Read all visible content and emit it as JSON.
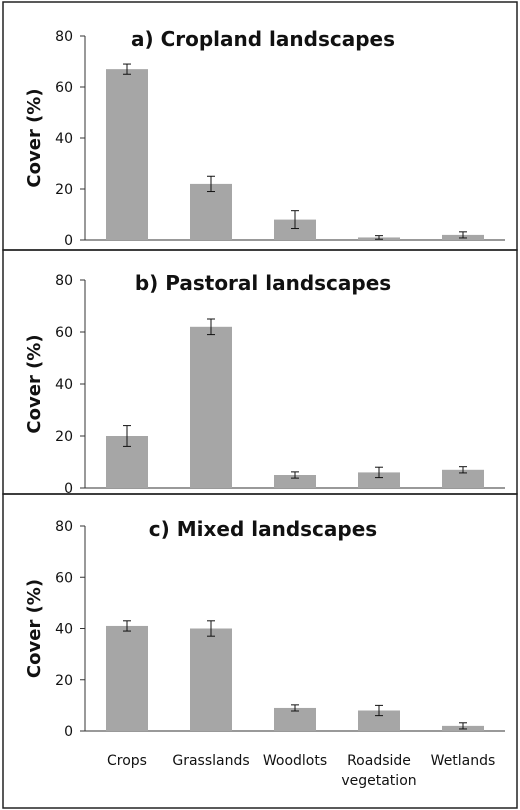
{
  "chart_data": [
    {
      "type": "bar",
      "title": "a) Cropland landscapes",
      "ylabel": "Cover (%)",
      "ylim": [
        0,
        80
      ],
      "yticks": [
        0,
        20,
        40,
        60,
        80
      ],
      "categories": [
        "Crops",
        "Grasslands",
        "Woodlots",
        "Roadside vegetation",
        "Wetlands"
      ],
      "values": [
        67,
        22,
        8,
        1,
        2
      ],
      "errors": [
        2,
        3,
        3.5,
        0.7,
        1.2
      ],
      "bar_color": "#a6a6a6"
    },
    {
      "type": "bar",
      "title": "b) Pastoral landscapes",
      "ylabel": "Cover (%)",
      "ylim": [
        0,
        80
      ],
      "yticks": [
        0,
        20,
        40,
        60,
        80
      ],
      "categories": [
        "Crops",
        "Grasslands",
        "Woodlots",
        "Roadside vegetation",
        "Wetlands"
      ],
      "values": [
        20,
        62,
        5,
        6,
        7
      ],
      "errors": [
        4,
        3,
        1.2,
        2,
        1.2
      ],
      "bar_color": "#a6a6a6"
    },
    {
      "type": "bar",
      "title": "c) Mixed landscapes",
      "ylabel": "Cover (%)",
      "ylim": [
        0,
        80
      ],
      "yticks": [
        0,
        20,
        40,
        60,
        80
      ],
      "categories": [
        "Crops",
        "Grasslands",
        "Woodlots",
        "Roadside vegetation",
        "Wetlands"
      ],
      "values": [
        41,
        40,
        9,
        8,
        2
      ],
      "errors": [
        2,
        3,
        1.2,
        2,
        1.2
      ],
      "bar_color": "#a6a6a6"
    }
  ],
  "category_labels": [
    [
      "Crops"
    ],
    [
      "Grasslands"
    ],
    [
      "Woodlots"
    ],
    [
      "Roadside",
      "vegetation"
    ],
    [
      "Wetlands"
    ]
  ]
}
